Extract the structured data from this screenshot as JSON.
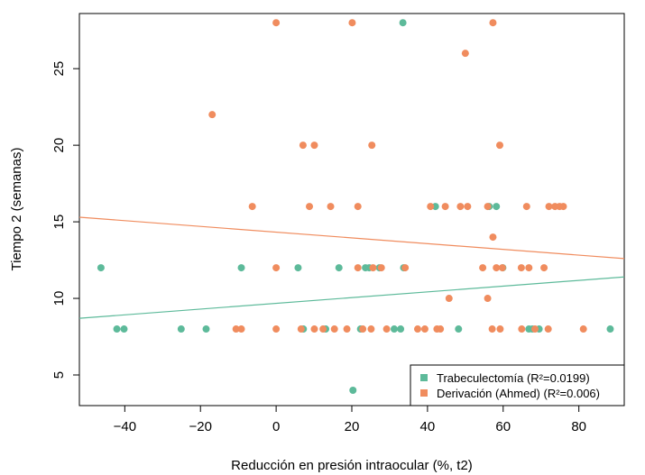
{
  "chart_data": {
    "type": "scatter",
    "xlabel": "Reducción en presión intraocular (%, t2)",
    "ylabel": "Tiempo 2 (semanas)",
    "xlim": [
      -52,
      92
    ],
    "ylim": [
      3,
      28.6
    ],
    "xticks": [
      -40,
      -20,
      0,
      20,
      40,
      60,
      80
    ],
    "yticks": [
      5,
      10,
      15,
      20,
      25
    ],
    "grid": false,
    "legend_position": "bottom-right",
    "series": [
      {
        "name": "Trabeculectomía (R²=0.0199)",
        "color": "#5dba9a",
        "x": [
          33.5,
          -46.3,
          -9.2,
          5.8,
          16.6,
          23.6,
          24.6,
          27.3,
          33.7,
          42.1,
          58.2,
          56.3,
          59.9,
          67.7,
          -42.1,
          -40.2,
          -25.1,
          -18.5,
          7.2,
          13.1,
          22.3,
          31.2,
          32.9,
          48.2,
          66.8,
          69.5,
          88.3,
          20.3
        ],
        "y": [
          28,
          12,
          12,
          12,
          12,
          12,
          12,
          12,
          12,
          16,
          16,
          16,
          12,
          8,
          8,
          8,
          8,
          8,
          8,
          8,
          8,
          8,
          8,
          8,
          8,
          8,
          8,
          4
        ],
        "trend": {
          "x": [
            -52,
            92
          ],
          "y": [
            8.7,
            11.4
          ]
        }
      },
      {
        "name": "Derivación (Ahmed) (R²=0.006)",
        "color": "#f08c5e",
        "x": [
          0,
          20.1,
          57.3,
          50,
          -16.9,
          7.1,
          10.1,
          25.3,
          59.1,
          -6.3,
          8.8,
          14.4,
          21.6,
          40.8,
          44.7,
          48.7,
          50.6,
          55.9,
          66.2,
          72.1,
          73.7,
          74.9,
          75.9,
          57.3,
          0,
          21.6,
          25.6,
          27.8,
          34.1,
          54.6,
          58.2,
          59.8,
          64.8,
          66.8,
          70.8,
          45.7,
          55.9,
          -10.6,
          -9.2,
          0,
          6.6,
          10.1,
          12.4,
          15.4,
          18.7,
          22.9,
          25.1,
          29.2,
          37.4,
          39.3,
          42.5,
          43.4,
          57.1,
          59.2,
          64.9,
          68.4,
          71.9,
          81.2
        ],
        "y": [
          28,
          28,
          28,
          26,
          22,
          20,
          20,
          20,
          20,
          16,
          16,
          16,
          16,
          16,
          16,
          16,
          16,
          16,
          16,
          16,
          16,
          16,
          16,
          14,
          12,
          12,
          12,
          12,
          12,
          12,
          12,
          12,
          12,
          12,
          12,
          10,
          10,
          8,
          8,
          8,
          8,
          8,
          8,
          8,
          8,
          8,
          8,
          8,
          8,
          8,
          8,
          8,
          8,
          8,
          8,
          8,
          8,
          8
        ],
        "trend": {
          "x": [
            -52,
            92
          ],
          "y": [
            15.3,
            12.6
          ]
        }
      }
    ]
  }
}
